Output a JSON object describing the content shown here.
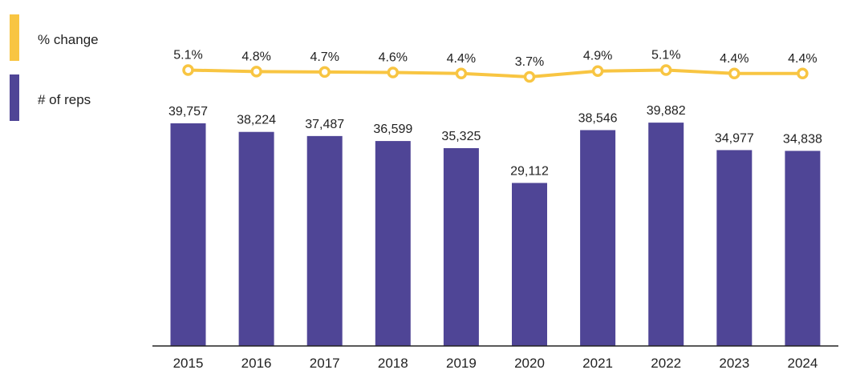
{
  "legend": [
    {
      "label": "% change",
      "color": "#F8C542"
    },
    {
      "label": "# of reps",
      "color": "#4F4596"
    }
  ],
  "chart_data": {
    "type": "bar",
    "title": "",
    "xlabel": "",
    "ylabel": "",
    "categories": [
      "2015",
      "2016",
      "2017",
      "2018",
      "2019",
      "2020",
      "2021",
      "2022",
      "2023",
      "2024"
    ],
    "series": [
      {
        "name": "# of reps",
        "type": "bar",
        "color": "#4F4596",
        "values": [
          39757,
          38224,
          37487,
          36599,
          35325,
          29112,
          38546,
          39882,
          34977,
          34838
        ],
        "labels": [
          "39,757",
          "38,224",
          "37,487",
          "36,599",
          "35,325",
          "29,112",
          "38,546",
          "39,882",
          "34,977",
          "34,838"
        ]
      },
      {
        "name": "% change",
        "type": "line",
        "color": "#F8C542",
        "values": [
          5.1,
          4.8,
          4.7,
          4.6,
          4.4,
          3.7,
          4.9,
          5.1,
          4.4,
          4.4
        ],
        "labels": [
          "5.1%",
          "4.8%",
          "4.7%",
          "4.6%",
          "4.4%",
          "3.7%",
          "4.9%",
          "5.1%",
          "4.4%",
          "4.4%"
        ]
      }
    ],
    "ylim": [
      0,
      40000
    ],
    "grid": false,
    "legend_position": "left"
  }
}
